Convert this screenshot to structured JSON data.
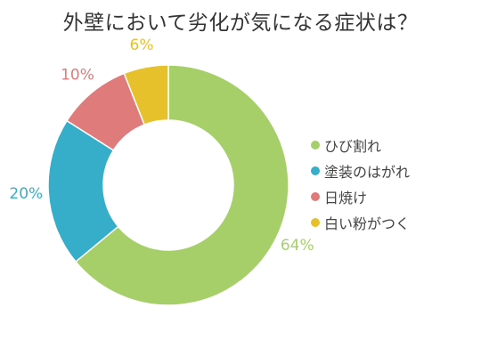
{
  "chart_data": {
    "type": "pie",
    "donut": true,
    "title": "外壁において劣化が気になる症状は？",
    "categories": [
      "ひび割れ",
      "塗装のはがれ",
      "日焼け",
      "白い粉がつく"
    ],
    "values": [
      64,
      20,
      10,
      6
    ],
    "labels": [
      "64%",
      "20%",
      "10%",
      "6%"
    ],
    "colors": [
      "#a6cf6a",
      "#36aeca",
      "#e07b7b",
      "#e6c12c"
    ],
    "legend_position": "right"
  }
}
